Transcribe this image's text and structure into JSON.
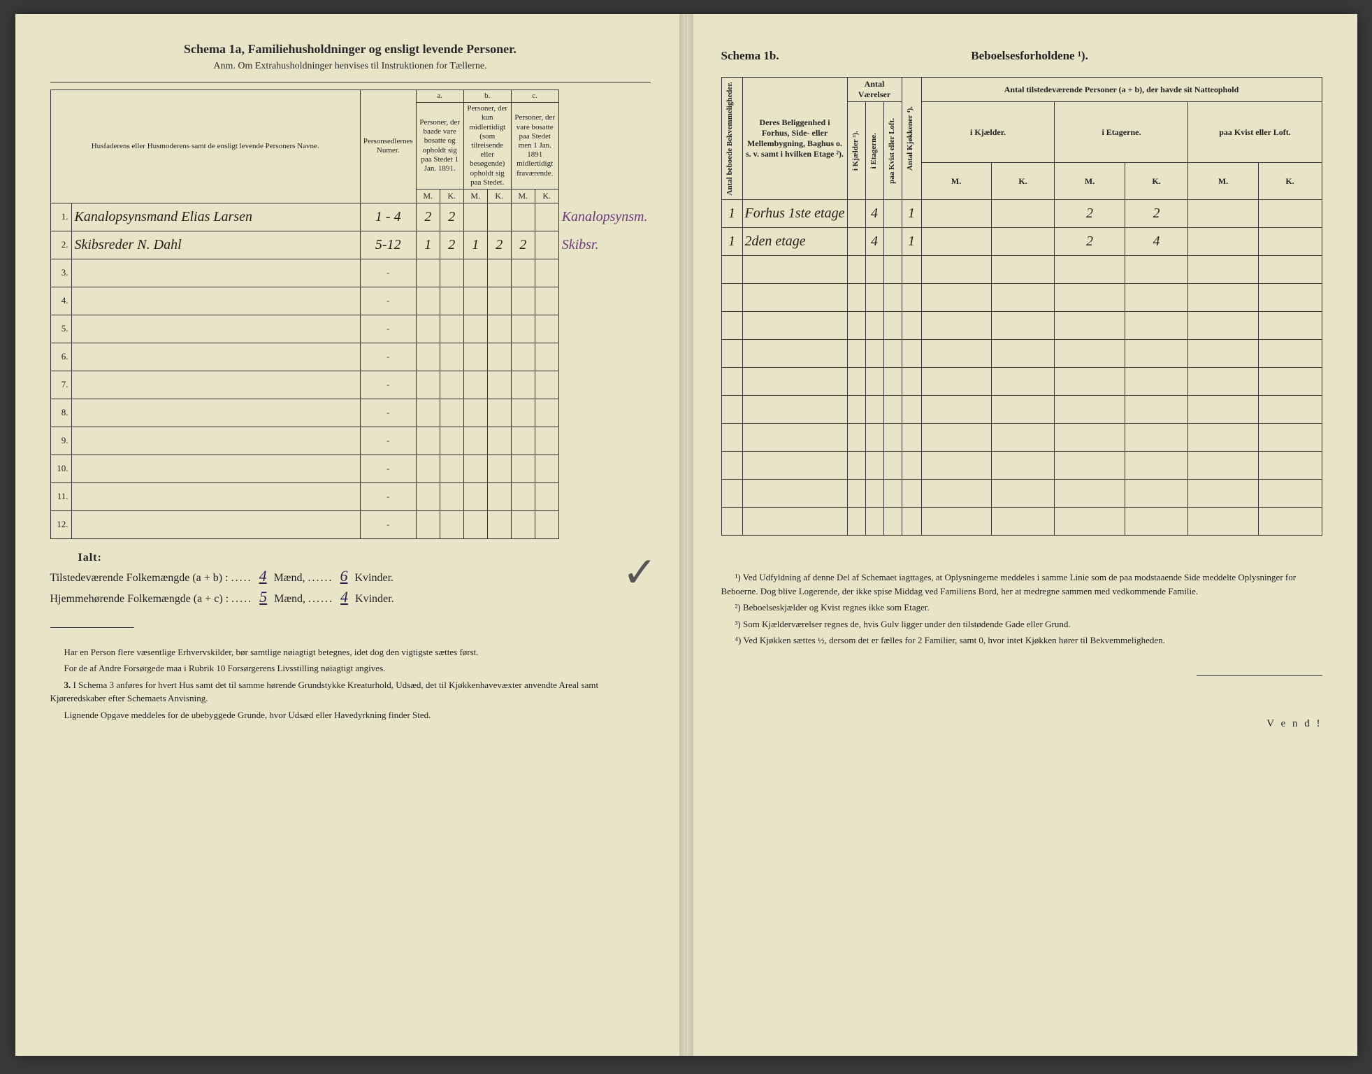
{
  "left": {
    "title": "Schema 1a,  Familiehusholdninger og ensligt levende Personer.",
    "subtitle": "Anm. Om Extrahusholdninger henvises til Instruktionen for Tællerne.",
    "headers": {
      "names": "Husfaderens eller Husmoderens samt de ensligt levende Personers Navne.",
      "person_nums": "Personsedlernes Numer.",
      "a_label": "a.",
      "a_text": "Personer, der baade vare bosatte og opholdt sig paa Stedet 1 Jan. 1891.",
      "b_label": "b.",
      "b_text": "Personer, der kun midlertidigt (som tilreisende eller besøgende) opholdt sig paa Stedet.",
      "c_label": "c.",
      "c_text": "Personer, der vare bosatte paa Stedet men 1 Jan. 1891 midlertidigt fraværende.",
      "M": "M.",
      "K": "K."
    },
    "rows": [
      {
        "num": "1.",
        "name": "Kanalopsynsmand Elias Larsen",
        "pnum": "1 - 4",
        "aM": "2",
        "aK": "2",
        "bM": "",
        "bK": "",
        "cM": "",
        "cK": "",
        "margin": "Kanalopsynsm."
      },
      {
        "num": "2.",
        "name": "Skibsreder N. Dahl",
        "pnum": "5-12",
        "aM": "1",
        "aK": "2",
        "bM": "1",
        "bK": "2",
        "cM": "2",
        "cK": "",
        "margin": "Skibsr."
      },
      {
        "num": "3.",
        "name": "",
        "pnum": "-",
        "aM": "",
        "aK": "",
        "bM": "",
        "bK": "",
        "cM": "",
        "cK": "",
        "margin": ""
      },
      {
        "num": "4.",
        "name": "",
        "pnum": "-",
        "aM": "",
        "aK": "",
        "bM": "",
        "bK": "",
        "cM": "",
        "cK": "",
        "margin": ""
      },
      {
        "num": "5.",
        "name": "",
        "pnum": "-",
        "aM": "",
        "aK": "",
        "bM": "",
        "bK": "",
        "cM": "",
        "cK": "",
        "margin": ""
      },
      {
        "num": "6.",
        "name": "",
        "pnum": "-",
        "aM": "",
        "aK": "",
        "bM": "",
        "bK": "",
        "cM": "",
        "cK": "",
        "margin": ""
      },
      {
        "num": "7.",
        "name": "",
        "pnum": "-",
        "aM": "",
        "aK": "",
        "bM": "",
        "bK": "",
        "cM": "",
        "cK": "",
        "margin": ""
      },
      {
        "num": "8.",
        "name": "",
        "pnum": "-",
        "aM": "",
        "aK": "",
        "bM": "",
        "bK": "",
        "cM": "",
        "cK": "",
        "margin": ""
      },
      {
        "num": "9.",
        "name": "",
        "pnum": "-",
        "aM": "",
        "aK": "",
        "bM": "",
        "bK": "",
        "cM": "",
        "cK": "",
        "margin": ""
      },
      {
        "num": "10.",
        "name": "",
        "pnum": "-",
        "aM": "",
        "aK": "",
        "bM": "",
        "bK": "",
        "cM": "",
        "cK": "",
        "margin": ""
      },
      {
        "num": "11.",
        "name": "",
        "pnum": "-",
        "aM": "",
        "aK": "",
        "bM": "",
        "bK": "",
        "cM": "",
        "cK": "",
        "margin": ""
      },
      {
        "num": "12.",
        "name": "",
        "pnum": "-",
        "aM": "",
        "aK": "",
        "bM": "",
        "bK": "",
        "cM": "",
        "cK": "",
        "margin": ""
      }
    ],
    "totals": {
      "ialt": "Ialt:",
      "line1_label": "Tilstedeværende Folkemængde (a + b) :",
      "line1_m": "4",
      "line1_k": "6",
      "line2_label": "Hjemmehørende Folkemængde (a + c) :",
      "line2_m": "5",
      "line2_k": "4",
      "maend": "Mænd,",
      "kvinder": "Kvinder."
    },
    "footnotes": {
      "p1": "Har en Person flere væsentlige Erhvervskilder, bør samtlige nøiagtigt betegnes, idet dog den vigtigste sættes først.",
      "p2": "For de af Andre Forsørgede maa i Rubrik 10 Forsørgerens Livsstilling nøiagtigt angives.",
      "p3_num": "3.",
      "p3": "I Schema 3 anføres for hvert Hus samt det til samme hørende Grundstykke Kreaturhold, Udsæd, det til Kjøkkenhavevæxter anvendte Areal samt Kjøreredskaber efter Schemaets Anvisning.",
      "p4": "Lignende Opgave meddeles for de ubebyggede Grunde, hvor Udsæd eller Havedyrkning finder Sted."
    }
  },
  "right": {
    "schema": "Schema 1b.",
    "title": "Beboelsesforholdene ¹).",
    "headers": {
      "antal_bekv": "Antal beboede Bekvemmeligheder.",
      "beliggenhed": "Deres Beliggenhed i Forhus, Side- eller Mellembygning, Baghus o. s. v. samt i hvilken Etage ²).",
      "antal_vaer": "Antal Værelser",
      "i_kjael": "i Kjælder ³).",
      "i_etag": "i Etagerne.",
      "paa_kvist": "paa Kvist eller Loft.",
      "antal_kj": "Antal Kjøkkener ⁴).",
      "antal_pers": "Antal tilstedeværende Personer (a + b), der havde sit Natteophold",
      "i_kjael2": "i Kjælder.",
      "i_etag2": "i Etagerne.",
      "paa_kvist2": "paa Kvist eller Loft.",
      "M": "M.",
      "K": "K."
    },
    "rows": [
      {
        "bekv": "1",
        "loc": "Forhus 1ste etage",
        "kj": "",
        "et": "4",
        "kv": "",
        "kjok": "1",
        "kM": "",
        "kK": "",
        "eM": "2",
        "eK": "2",
        "lM": "",
        "lK": ""
      },
      {
        "bekv": "1",
        "loc": "2den etage",
        "kj": "",
        "et": "4",
        "kv": "",
        "kjok": "1",
        "kM": "",
        "kK": "",
        "eM": "2",
        "eK": "4",
        "lM": "",
        "lK": ""
      },
      {
        "bekv": "",
        "loc": "",
        "kj": "",
        "et": "",
        "kv": "",
        "kjok": "",
        "kM": "",
        "kK": "",
        "eM": "",
        "eK": "",
        "lM": "",
        "lK": ""
      },
      {
        "bekv": "",
        "loc": "",
        "kj": "",
        "et": "",
        "kv": "",
        "kjok": "",
        "kM": "",
        "kK": "",
        "eM": "",
        "eK": "",
        "lM": "",
        "lK": ""
      },
      {
        "bekv": "",
        "loc": "",
        "kj": "",
        "et": "",
        "kv": "",
        "kjok": "",
        "kM": "",
        "kK": "",
        "eM": "",
        "eK": "",
        "lM": "",
        "lK": ""
      },
      {
        "bekv": "",
        "loc": "",
        "kj": "",
        "et": "",
        "kv": "",
        "kjok": "",
        "kM": "",
        "kK": "",
        "eM": "",
        "eK": "",
        "lM": "",
        "lK": ""
      },
      {
        "bekv": "",
        "loc": "",
        "kj": "",
        "et": "",
        "kv": "",
        "kjok": "",
        "kM": "",
        "kK": "",
        "eM": "",
        "eK": "",
        "lM": "",
        "lK": ""
      },
      {
        "bekv": "",
        "loc": "",
        "kj": "",
        "et": "",
        "kv": "",
        "kjok": "",
        "kM": "",
        "kK": "",
        "eM": "",
        "eK": "",
        "lM": "",
        "lK": ""
      },
      {
        "bekv": "",
        "loc": "",
        "kj": "",
        "et": "",
        "kv": "",
        "kjok": "",
        "kM": "",
        "kK": "",
        "eM": "",
        "eK": "",
        "lM": "",
        "lK": ""
      },
      {
        "bekv": "",
        "loc": "",
        "kj": "",
        "et": "",
        "kv": "",
        "kjok": "",
        "kM": "",
        "kK": "",
        "eM": "",
        "eK": "",
        "lM": "",
        "lK": ""
      },
      {
        "bekv": "",
        "loc": "",
        "kj": "",
        "et": "",
        "kv": "",
        "kjok": "",
        "kM": "",
        "kK": "",
        "eM": "",
        "eK": "",
        "lM": "",
        "lK": ""
      },
      {
        "bekv": "",
        "loc": "",
        "kj": "",
        "et": "",
        "kv": "",
        "kjok": "",
        "kM": "",
        "kK": "",
        "eM": "",
        "eK": "",
        "lM": "",
        "lK": ""
      }
    ],
    "footnotes": {
      "f1": "¹) Ved Udfyldning af denne Del af Schemaet iagttages, at Oplysningerne meddeles i samme Linie som de paa modstaaende Side meddelte Oplysninger for Beboerne. Dog blive Logerende, der ikke spise Middag ved Familiens Bord, her at medregne sammen med vedkommende Familie.",
      "f2": "²) Beboelseskjælder og Kvist regnes ikke som Etager.",
      "f3": "³) Som Kjælderværelser regnes de, hvis Gulv ligger under den tilstødende Gade eller Grund.",
      "f4": "⁴) Ved Kjøkken sættes ½, dersom det er fælles for 2 Familier, samt 0, hvor intet Kjøkken hører til Bekvemmeligheden."
    },
    "vend": "V e n d !"
  }
}
